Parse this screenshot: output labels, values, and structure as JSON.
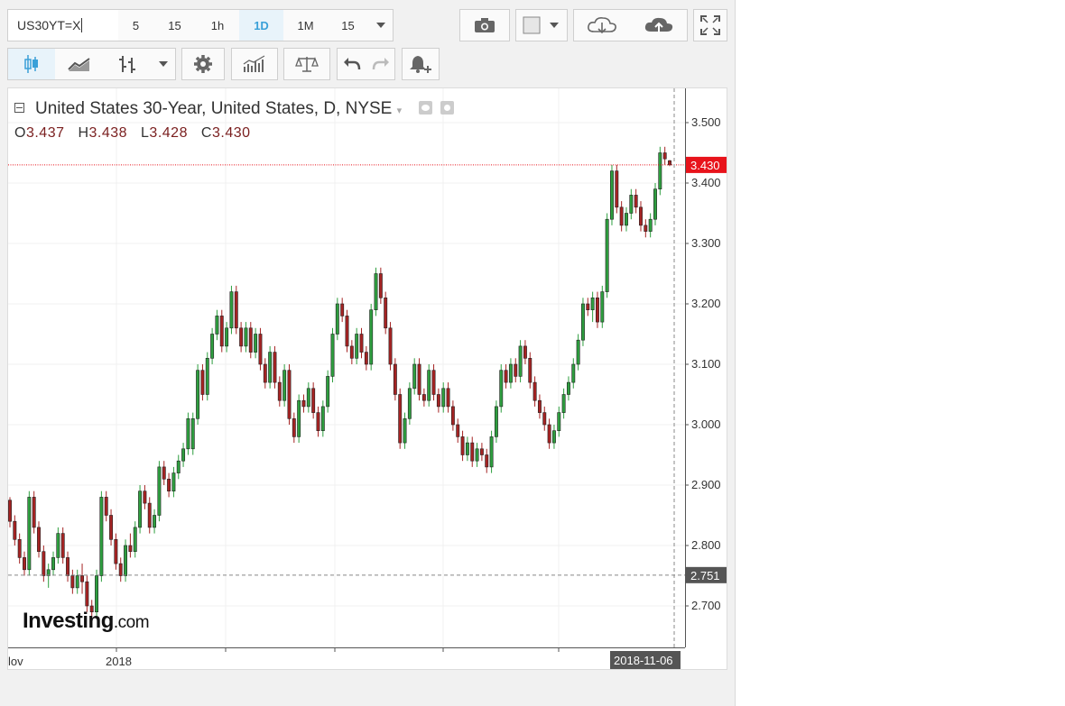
{
  "toolbar": {
    "symbol": "US30YT=X",
    "timeframes": [
      "5",
      "15",
      "1h",
      "1D",
      "1M",
      "15"
    ],
    "active_timeframe": "1D"
  },
  "legend": {
    "title": "United States 30-Year, United States, D, NYSE",
    "open_label": "O",
    "open": "3.437",
    "high_label": "H",
    "high": "3.438",
    "low_label": "L",
    "low": "3.428",
    "close_label": "C",
    "close": "3.430"
  },
  "logo": {
    "brand": "Investing",
    "suffix": ".com"
  },
  "colors": {
    "up": "#2e9e3f",
    "down": "#a52323",
    "price_tag": "#e8131b",
    "ref_tag": "#555555"
  },
  "chart_data": {
    "type": "candlestick",
    "title": "United States 30-Year, United States, D, NYSE",
    "ylim": [
      2.62,
      3.55
    ],
    "yticks": [
      "3.500",
      "3.400",
      "3.300",
      "3.200",
      "3.100",
      "3.000",
      "2.900",
      "2.800",
      "2.700"
    ],
    "xtick_labels": [
      "lov",
      "2018"
    ],
    "last_date_label": "2018-11-06",
    "current_price": "3.430",
    "reference_price": "2.751",
    "candles": [
      [
        2.875,
        2.88,
        2.83,
        2.84
      ],
      [
        2.84,
        2.85,
        2.8,
        2.81
      ],
      [
        2.81,
        2.82,
        2.77,
        2.78
      ],
      [
        2.78,
        2.79,
        2.75,
        2.76
      ],
      [
        2.76,
        2.89,
        2.75,
        2.88
      ],
      [
        2.88,
        2.89,
        2.82,
        2.83
      ],
      [
        2.83,
        2.84,
        2.78,
        2.79
      ],
      [
        2.79,
        2.8,
        2.74,
        2.75
      ],
      [
        2.75,
        2.77,
        2.73,
        2.76
      ],
      [
        2.76,
        2.79,
        2.75,
        2.78
      ],
      [
        2.78,
        2.83,
        2.77,
        2.82
      ],
      [
        2.82,
        2.83,
        2.77,
        2.78
      ],
      [
        2.78,
        2.79,
        2.74,
        2.75
      ],
      [
        2.75,
        2.76,
        2.72,
        2.73
      ],
      [
        2.73,
        2.76,
        2.72,
        2.75
      ],
      [
        2.75,
        2.77,
        2.72,
        2.74
      ],
      [
        2.74,
        2.75,
        2.69,
        2.7
      ],
      [
        2.7,
        2.71,
        2.68,
        2.69
      ],
      [
        2.69,
        2.76,
        2.68,
        2.75
      ],
      [
        2.75,
        2.89,
        2.74,
        2.88
      ],
      [
        2.88,
        2.89,
        2.84,
        2.85
      ],
      [
        2.85,
        2.86,
        2.8,
        2.81
      ],
      [
        2.81,
        2.82,
        2.76,
        2.77
      ],
      [
        2.77,
        2.78,
        2.74,
        2.75
      ],
      [
        2.75,
        2.81,
        2.74,
        2.8
      ],
      [
        2.8,
        2.82,
        2.78,
        2.79
      ],
      [
        2.79,
        2.84,
        2.78,
        2.83
      ],
      [
        2.83,
        2.9,
        2.82,
        2.89
      ],
      [
        2.89,
        2.9,
        2.86,
        2.87
      ],
      [
        2.87,
        2.88,
        2.82,
        2.83
      ],
      [
        2.83,
        2.86,
        2.82,
        2.85
      ],
      [
        2.85,
        2.94,
        2.84,
        2.93
      ],
      [
        2.93,
        2.94,
        2.9,
        2.91
      ],
      [
        2.91,
        2.92,
        2.88,
        2.89
      ],
      [
        2.89,
        2.93,
        2.88,
        2.92
      ],
      [
        2.92,
        2.95,
        2.91,
        2.94
      ],
      [
        2.94,
        2.97,
        2.93,
        2.96
      ],
      [
        2.96,
        3.02,
        2.95,
        3.01
      ],
      [
        2.96,
        3.02,
        2.95,
        3.01
      ],
      [
        3.01,
        3.1,
        3.0,
        3.09
      ],
      [
        3.09,
        3.1,
        3.04,
        3.05
      ],
      [
        3.05,
        3.12,
        3.04,
        3.11
      ],
      [
        3.11,
        3.16,
        3.1,
        3.15
      ],
      [
        3.15,
        3.19,
        3.14,
        3.18
      ],
      [
        3.18,
        3.19,
        3.12,
        3.13
      ],
      [
        3.13,
        3.17,
        3.12,
        3.16
      ],
      [
        3.16,
        3.23,
        3.15,
        3.22
      ],
      [
        3.22,
        3.23,
        3.15,
        3.16
      ],
      [
        3.16,
        3.17,
        3.12,
        3.13
      ],
      [
        3.13,
        3.17,
        3.12,
        3.16
      ],
      [
        3.16,
        3.17,
        3.11,
        3.12
      ],
      [
        3.12,
        3.16,
        3.11,
        3.15
      ],
      [
        3.15,
        3.16,
        3.09,
        3.1
      ],
      [
        3.1,
        3.11,
        3.06,
        3.07
      ],
      [
        3.07,
        3.13,
        3.06,
        3.12
      ],
      [
        3.12,
        3.13,
        3.06,
        3.07
      ],
      [
        3.07,
        3.08,
        3.03,
        3.04
      ],
      [
        3.04,
        3.1,
        3.03,
        3.09
      ],
      [
        3.09,
        3.1,
        3.0,
        3.01
      ],
      [
        3.01,
        3.02,
        2.97,
        2.98
      ],
      [
        2.98,
        3.05,
        2.97,
        3.04
      ],
      [
        3.04,
        3.05,
        3.02,
        3.03
      ],
      [
        3.03,
        3.07,
        3.02,
        3.06
      ],
      [
        3.06,
        3.07,
        3.01,
        3.02
      ],
      [
        3.02,
        3.03,
        2.98,
        2.99
      ],
      [
        2.99,
        3.04,
        2.98,
        3.03
      ],
      [
        3.03,
        3.09,
        3.02,
        3.08
      ],
      [
        3.08,
        3.16,
        3.07,
        3.15
      ],
      [
        3.15,
        3.21,
        3.14,
        3.2
      ],
      [
        3.2,
        3.21,
        3.17,
        3.18
      ],
      [
        3.18,
        3.19,
        3.12,
        3.13
      ],
      [
        3.13,
        3.14,
        3.1,
        3.11
      ],
      [
        3.11,
        3.16,
        3.1,
        3.15
      ],
      [
        3.15,
        3.16,
        3.11,
        3.12
      ],
      [
        3.12,
        3.13,
        3.09,
        3.1
      ],
      [
        3.1,
        3.2,
        3.09,
        3.19
      ],
      [
        3.19,
        3.26,
        3.18,
        3.25
      ],
      [
        3.25,
        3.26,
        3.2,
        3.21
      ],
      [
        3.21,
        3.22,
        3.15,
        3.16
      ],
      [
        3.16,
        3.17,
        3.09,
        3.1
      ],
      [
        3.1,
        3.11,
        3.04,
        3.05
      ],
      [
        3.05,
        3.06,
        2.96,
        2.97
      ],
      [
        2.97,
        3.02,
        2.96,
        3.01
      ],
      [
        3.01,
        3.07,
        3.0,
        3.06
      ],
      [
        3.06,
        3.11,
        3.05,
        3.1
      ],
      [
        3.1,
        3.11,
        3.04,
        3.05
      ],
      [
        3.05,
        3.06,
        3.03,
        3.04
      ],
      [
        3.04,
        3.1,
        3.03,
        3.09
      ],
      [
        3.09,
        3.1,
        3.04,
        3.05
      ],
      [
        3.05,
        3.06,
        3.02,
        3.03
      ],
      [
        3.03,
        3.07,
        3.02,
        3.06
      ],
      [
        3.06,
        3.07,
        3.02,
        3.03
      ],
      [
        3.03,
        3.04,
        2.99,
        3.0
      ],
      [
        3.0,
        3.01,
        2.97,
        2.98
      ],
      [
        2.98,
        2.99,
        2.94,
        2.95
      ],
      [
        2.95,
        2.98,
        2.94,
        2.97
      ],
      [
        2.97,
        2.98,
        2.93,
        2.94
      ],
      [
        2.94,
        2.97,
        2.93,
        2.96
      ],
      [
        2.96,
        2.97,
        2.94,
        2.95
      ],
      [
        2.95,
        2.96,
        2.92,
        2.93
      ],
      [
        2.93,
        2.99,
        2.92,
        2.98
      ],
      [
        2.98,
        3.04,
        2.97,
        3.03
      ],
      [
        3.03,
        3.1,
        3.02,
        3.09
      ],
      [
        3.09,
        3.1,
        3.06,
        3.07
      ],
      [
        3.07,
        3.11,
        3.06,
        3.1
      ],
      [
        3.1,
        3.11,
        3.07,
        3.08
      ],
      [
        3.08,
        3.14,
        3.07,
        3.13
      ],
      [
        3.13,
        3.14,
        3.1,
        3.11
      ],
      [
        3.11,
        3.12,
        3.06,
        3.07
      ],
      [
        3.07,
        3.08,
        3.03,
        3.04
      ],
      [
        3.04,
        3.05,
        3.01,
        3.02
      ],
      [
        3.02,
        3.03,
        2.99,
        3.0
      ],
      [
        3.0,
        3.01,
        2.96,
        2.97
      ],
      [
        2.97,
        3.0,
        2.96,
        2.99
      ],
      [
        2.99,
        3.03,
        2.98,
        3.02
      ],
      [
        3.02,
        3.06,
        3.01,
        3.05
      ],
      [
        3.05,
        3.08,
        3.04,
        3.07
      ],
      [
        3.07,
        3.11,
        3.06,
        3.1
      ],
      [
        3.1,
        3.15,
        3.09,
        3.14
      ],
      [
        3.14,
        3.21,
        3.13,
        3.2
      ],
      [
        3.2,
        3.21,
        3.18,
        3.19
      ],
      [
        3.19,
        3.22,
        3.17,
        3.21
      ],
      [
        3.21,
        3.22,
        3.16,
        3.17
      ],
      [
        3.17,
        3.23,
        3.16,
        3.22
      ],
      [
        3.22,
        3.35,
        3.21,
        3.34
      ],
      [
        3.34,
        3.43,
        3.33,
        3.42
      ],
      [
        3.42,
        3.43,
        3.35,
        3.36
      ],
      [
        3.36,
        3.37,
        3.32,
        3.33
      ],
      [
        3.33,
        3.36,
        3.32,
        3.35
      ],
      [
        3.35,
        3.39,
        3.34,
        3.38
      ],
      [
        3.38,
        3.39,
        3.35,
        3.36
      ],
      [
        3.36,
        3.37,
        3.32,
        3.33
      ],
      [
        3.33,
        3.34,
        3.31,
        3.32
      ],
      [
        3.32,
        3.35,
        3.31,
        3.34
      ],
      [
        3.34,
        3.4,
        3.33,
        3.39
      ],
      [
        3.39,
        3.46,
        3.38,
        3.45
      ],
      [
        3.45,
        3.46,
        3.43,
        3.44
      ],
      [
        3.437,
        3.438,
        3.428,
        3.43
      ]
    ]
  }
}
